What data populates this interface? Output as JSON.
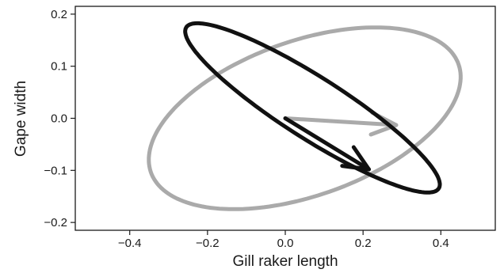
{
  "chart_data": {
    "type": "scatter",
    "title": "",
    "xlabel": "Gill raker length",
    "ylabel": "Gape width",
    "xlim": [
      -0.54,
      0.54
    ],
    "ylim": [
      -0.215,
      0.215
    ],
    "xticks": [
      -0.4,
      -0.2,
      0.0,
      0.2,
      0.4
    ],
    "xtick_labels": [
      "−0.4",
      "−0.2",
      "0.0",
      "0.2",
      "0.4"
    ],
    "yticks": [
      -0.2,
      -0.1,
      0.0,
      0.1,
      0.2
    ],
    "ytick_labels": [
      "−0.2",
      "−0.1",
      "0.0",
      "0.1",
      "0.2"
    ],
    "grid": false,
    "legend": "none",
    "series": [
      {
        "color": "#aaaaaa",
        "ellipse": {
          "center": [
            0.05,
            0.0
          ],
          "semi_major": 0.41,
          "semi_minor": 0.152,
          "angle_deg": 13
        },
        "arrow": {
          "from": [
            0.0,
            0.0
          ],
          "to": [
            0.285,
            -0.013
          ]
        }
      },
      {
        "color": "#111111",
        "ellipse": {
          "center": [
            0.07,
            0.02
          ],
          "semi_major": 0.36,
          "semi_minor": 0.063,
          "angle_deg": -25
        },
        "arrow": {
          "from": [
            0.0,
            0.0
          ],
          "to": [
            0.215,
            -0.098
          ]
        }
      }
    ]
  }
}
